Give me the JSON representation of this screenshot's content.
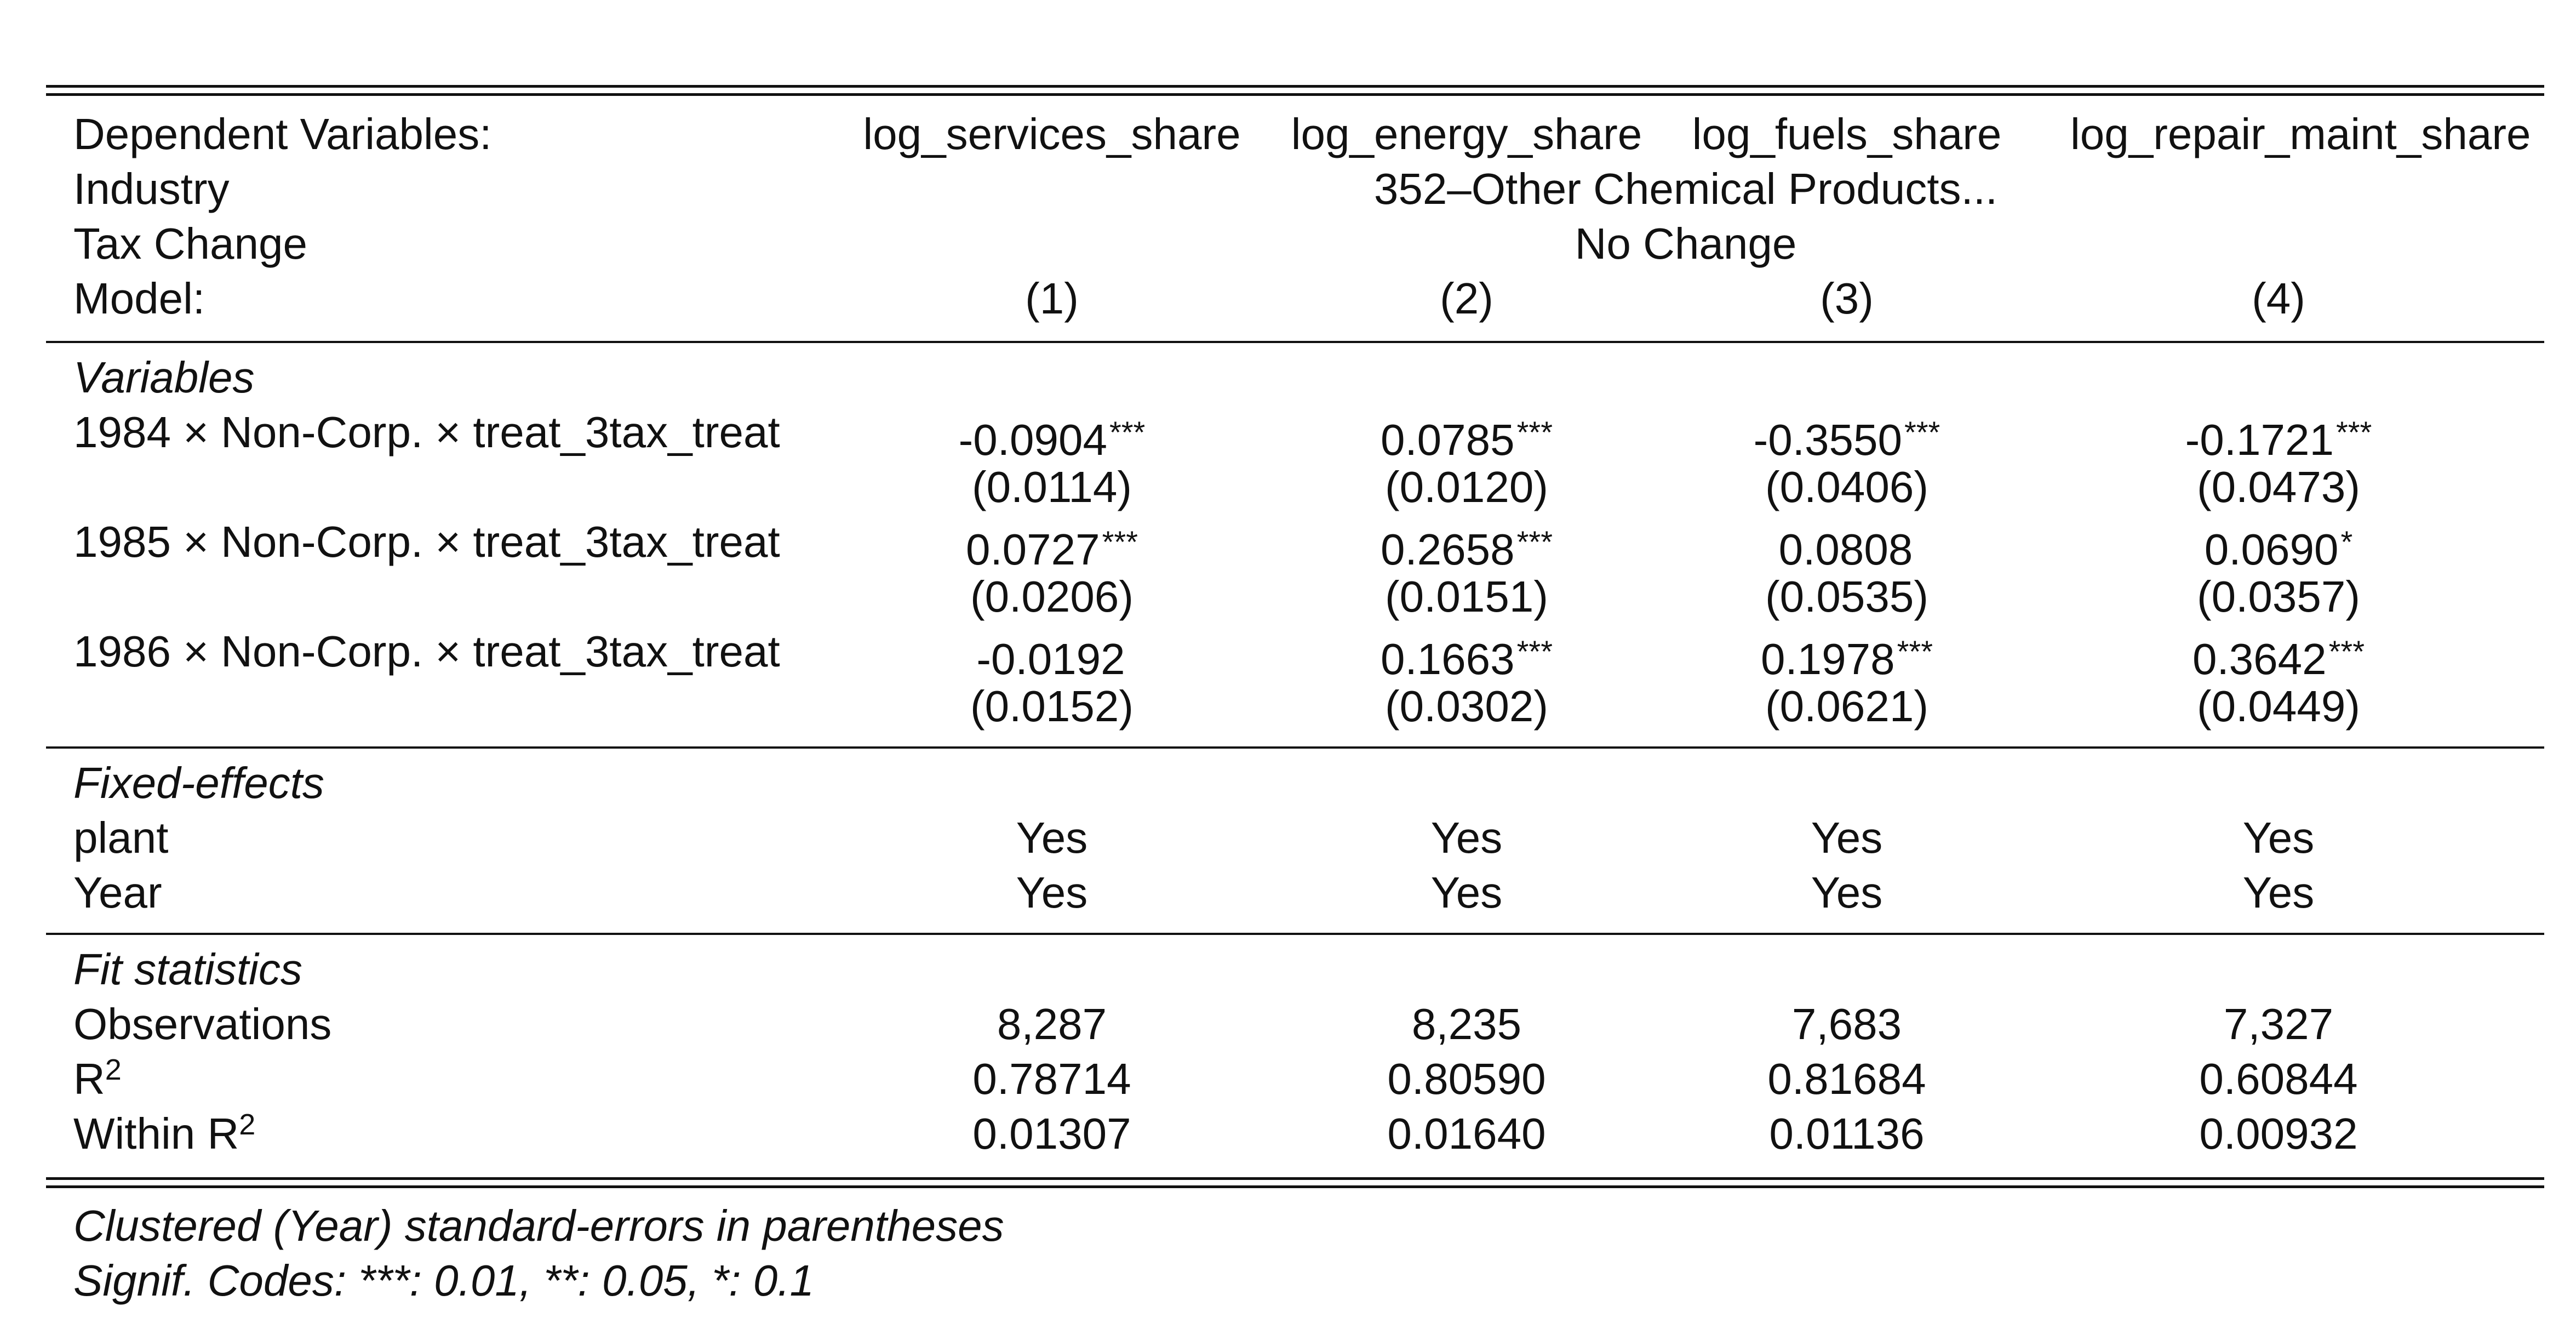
{
  "header": {
    "dep_label": "Dependent Variables:",
    "dep_vars": [
      "log_services_share",
      "log_energy_share",
      "log_fuels_share",
      "log_repair_maint_share"
    ],
    "industry_label": "Industry",
    "industry_value": "352–Other Chemical Products...",
    "tax_label": "Tax Change",
    "tax_value": "No Change",
    "model_label": "Model:",
    "models": [
      "(1)",
      "(2)",
      "(3)",
      "(4)"
    ]
  },
  "variables": {
    "section_title": "Variables",
    "rows": [
      {
        "label": "1984 × Non-Corp. × treat_3tax_treat",
        "coef": [
          "-0.0904",
          "0.0785",
          "-0.3550",
          "-0.1721"
        ],
        "stars": [
          "***",
          "***",
          "***",
          "***"
        ],
        "se": [
          "(0.0114)",
          "(0.0120)",
          "(0.0406)",
          "(0.0473)"
        ]
      },
      {
        "label": "1985 × Non-Corp. × treat_3tax_treat",
        "coef": [
          "0.0727",
          "0.2658",
          "0.0808",
          "0.0690"
        ],
        "stars": [
          "***",
          "***",
          "",
          "*"
        ],
        "se": [
          "(0.0206)",
          "(0.0151)",
          "(0.0535)",
          "(0.0357)"
        ]
      },
      {
        "label": "1986 × Non-Corp. × treat_3tax_treat",
        "coef": [
          "-0.0192",
          "0.1663",
          "0.1978",
          "0.3642"
        ],
        "stars": [
          "",
          "***",
          "***",
          "***"
        ],
        "se": [
          "(0.0152)",
          "(0.0302)",
          "(0.0621)",
          "(0.0449)"
        ]
      }
    ]
  },
  "fixed_effects": {
    "section_title": "Fixed-effects",
    "rows": [
      {
        "label": "plant",
        "values": [
          "Yes",
          "Yes",
          "Yes",
          "Yes"
        ]
      },
      {
        "label": "Year",
        "values": [
          "Yes",
          "Yes",
          "Yes",
          "Yes"
        ]
      }
    ]
  },
  "fit": {
    "section_title": "Fit statistics",
    "rows": [
      {
        "label": "Observations",
        "sup": "",
        "values": [
          "8,287",
          "8,235",
          "7,683",
          "7,327"
        ]
      },
      {
        "label": "R",
        "sup": "2",
        "values": [
          "0.78714",
          "0.80590",
          "0.81684",
          "0.60844"
        ]
      },
      {
        "label": "Within R",
        "sup": "2",
        "values": [
          "0.01307",
          "0.01640",
          "0.01136",
          "0.00932"
        ]
      }
    ]
  },
  "notes": [
    "Clustered (Year) standard-errors in parentheses",
    "Signif. Codes: ***: 0.01, **: 0.05, *: 0.1"
  ]
}
